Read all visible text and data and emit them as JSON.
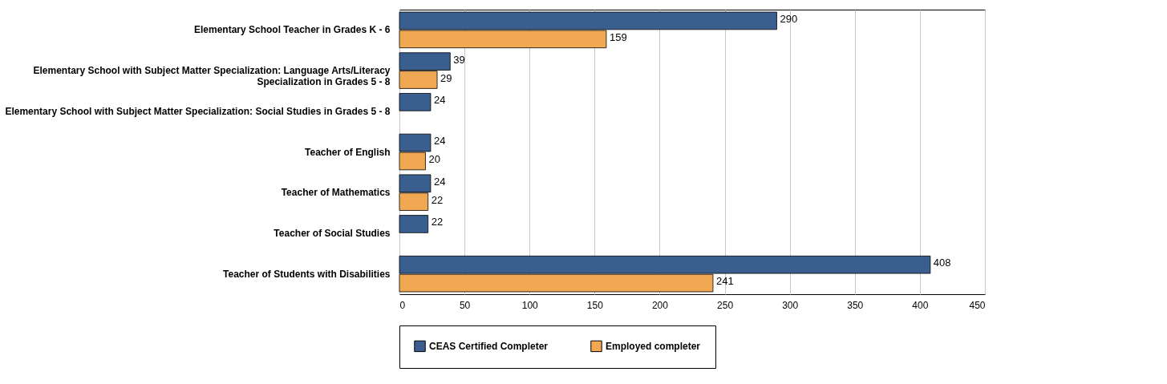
{
  "chart_data": {
    "type": "bar",
    "orientation": "horizontal",
    "categories": [
      "Elementary School Teacher in Grades K - 6",
      "Elementary School with Subject Matter Specialization: Language Arts/Literacy\nSpecialization in Grades 5 - 8",
      "Elementary School with Subject Matter Specialization: Social Studies in Grades 5 - 8",
      "Teacher of English",
      "Teacher of Mathematics",
      "Teacher of Social Studies",
      "Teacher of Students with Disabilities"
    ],
    "series": [
      {
        "name": "CEAS Certified Completer",
        "color": "#3a5f8f",
        "values": [
          290,
          39,
          24,
          24,
          24,
          22,
          408
        ]
      },
      {
        "name": "Employed completer",
        "color": "#f0a852",
        "values": [
          159,
          29,
          null,
          20,
          22,
          null,
          241
        ]
      }
    ],
    "xlim": [
      0,
      450
    ],
    "xticks": [
      0,
      50,
      100,
      150,
      200,
      250,
      300,
      350,
      400,
      450
    ],
    "grid": "x",
    "legend": "bottom",
    "data_labels": true
  }
}
